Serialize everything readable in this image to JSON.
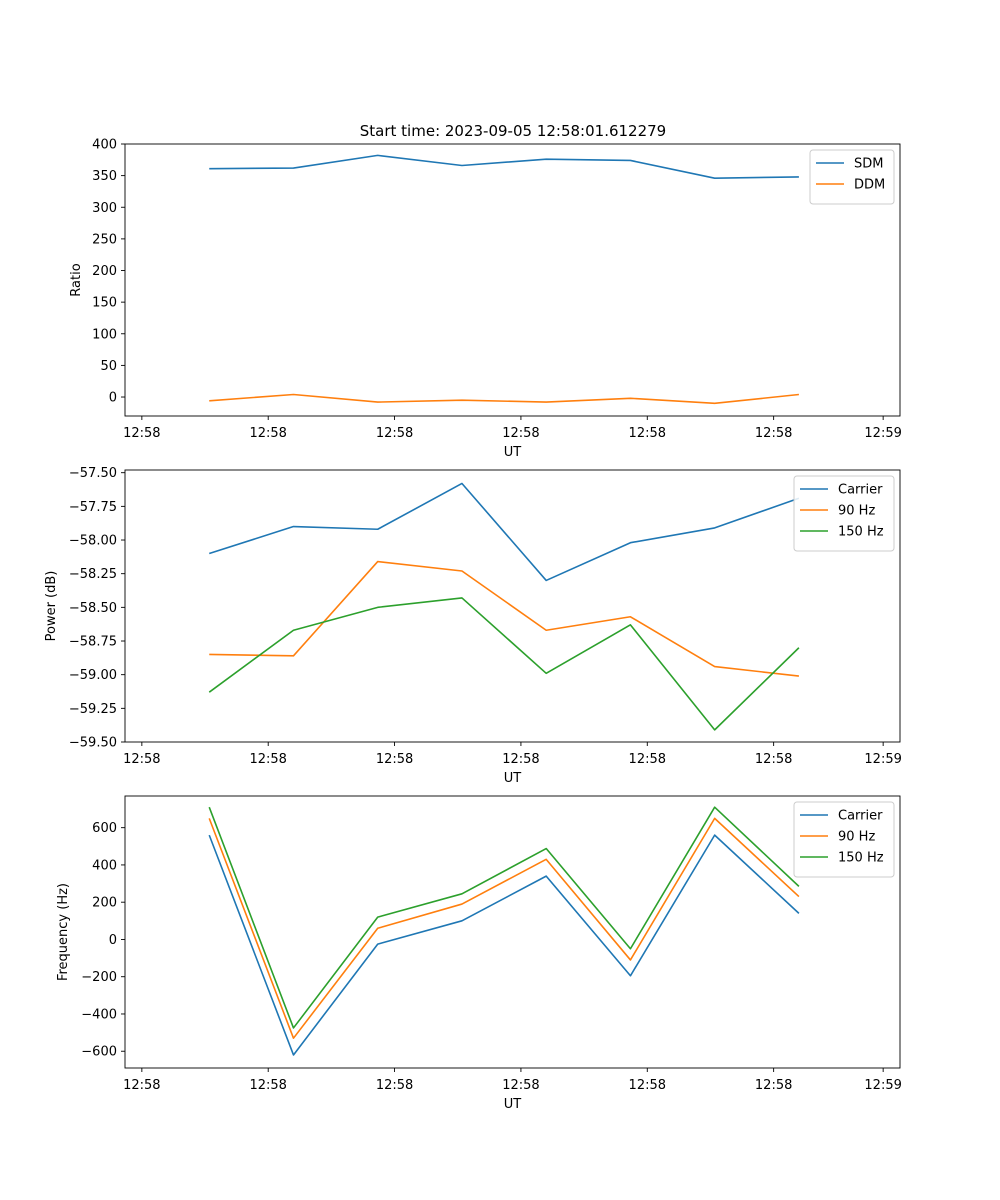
{
  "figure_title": "Start time: 2023-09-05 12:58:01.612279",
  "colors": {
    "blue": "#1f77b4",
    "orange": "#ff7f0e",
    "green": "#2ca02c"
  },
  "chart_data": [
    {
      "type": "line",
      "title": "Start time: 2023-09-05 12:58:01.612279",
      "xlabel": "UT",
      "ylabel": "Ratio",
      "x": [
        1,
        2,
        3,
        4,
        5,
        6,
        7,
        8
      ],
      "xlim": [
        0,
        9.2
      ],
      "x_ticks": [
        0.2,
        1.7,
        3.2,
        4.7,
        6.2,
        7.7,
        9.0
      ],
      "x_tick_labels": [
        "12:58",
        "12:58",
        "12:58",
        "12:58",
        "12:58",
        "12:58",
        "12:59"
      ],
      "ylim": [
        -30,
        400
      ],
      "y_ticks": [
        0,
        50,
        100,
        150,
        200,
        250,
        300,
        350,
        400
      ],
      "y_tick_labels": [
        "0",
        "50",
        "100",
        "150",
        "200",
        "250",
        "300",
        "350",
        "400"
      ],
      "legend_position": "top-right",
      "series": [
        {
          "name": "SDM",
          "color": "#1f77b4",
          "values": [
            361,
            362,
            382,
            366,
            376,
            374,
            346,
            348
          ]
        },
        {
          "name": "DDM",
          "color": "#ff7f0e",
          "values": [
            -6,
            4,
            -8,
            -5,
            -8,
            -2,
            -10,
            4
          ]
        }
      ]
    },
    {
      "type": "line",
      "title": "",
      "xlabel": "UT",
      "ylabel": "Power (dB)",
      "x": [
        1,
        2,
        3,
        4,
        5,
        6,
        7,
        8
      ],
      "xlim": [
        0,
        9.2
      ],
      "x_ticks": [
        0.2,
        1.7,
        3.2,
        4.7,
        6.2,
        7.7,
        9.0
      ],
      "x_tick_labels": [
        "12:58",
        "12:58",
        "12:58",
        "12:58",
        "12:58",
        "12:58",
        "12:59"
      ],
      "ylim": [
        -59.5,
        -57.48
      ],
      "y_ticks": [
        -59.5,
        -59.25,
        -59.0,
        -58.75,
        -58.5,
        -58.25,
        -58.0,
        -57.75,
        -57.5
      ],
      "y_tick_labels": [
        "−59.50",
        "−59.25",
        "−59.00",
        "−58.75",
        "−58.50",
        "−58.25",
        "−58.00",
        "−57.75",
        "−57.50"
      ],
      "legend_position": "top-right",
      "series": [
        {
          "name": "Carrier",
          "color": "#1f77b4",
          "values": [
            -58.1,
            -57.9,
            -57.92,
            -57.58,
            -58.3,
            -58.02,
            -57.91,
            -57.69
          ]
        },
        {
          "name": "90 Hz",
          "color": "#ff7f0e",
          "values": [
            -58.85,
            -58.86,
            -58.16,
            -58.23,
            -58.67,
            -58.57,
            -58.94,
            -59.01
          ]
        },
        {
          "name": "150 Hz",
          "color": "#2ca02c",
          "values": [
            -59.13,
            -58.67,
            -58.5,
            -58.43,
            -58.99,
            -58.63,
            -59.41,
            -58.8
          ]
        }
      ]
    },
    {
      "type": "line",
      "title": "",
      "xlabel": "UT",
      "ylabel": "Frequency (Hz)",
      "x": [
        1,
        2,
        3,
        4,
        5,
        6,
        7,
        8
      ],
      "xlim": [
        0,
        9.2
      ],
      "x_ticks": [
        0.2,
        1.7,
        3.2,
        4.7,
        6.2,
        7.7,
        9.0
      ],
      "x_tick_labels": [
        "12:58",
        "12:58",
        "12:58",
        "12:58",
        "12:58",
        "12:58",
        "12:59"
      ],
      "ylim": [
        -690,
        770
      ],
      "y_ticks": [
        -600,
        -400,
        -200,
        0,
        200,
        400,
        600
      ],
      "y_tick_labels": [
        "−600",
        "−400",
        "−200",
        "0",
        "200",
        "400",
        "600"
      ],
      "legend_position": "top-right",
      "series": [
        {
          "name": "Carrier",
          "color": "#1f77b4",
          "values": [
            560,
            -620,
            -25,
            100,
            340,
            -195,
            560,
            140
          ]
        },
        {
          "name": "90 Hz",
          "color": "#ff7f0e",
          "values": [
            650,
            -530,
            60,
            190,
            430,
            -110,
            650,
            230
          ]
        },
        {
          "name": "150 Hz",
          "color": "#2ca02c",
          "values": [
            710,
            -475,
            120,
            245,
            488,
            -50,
            710,
            285
          ]
        }
      ]
    }
  ]
}
